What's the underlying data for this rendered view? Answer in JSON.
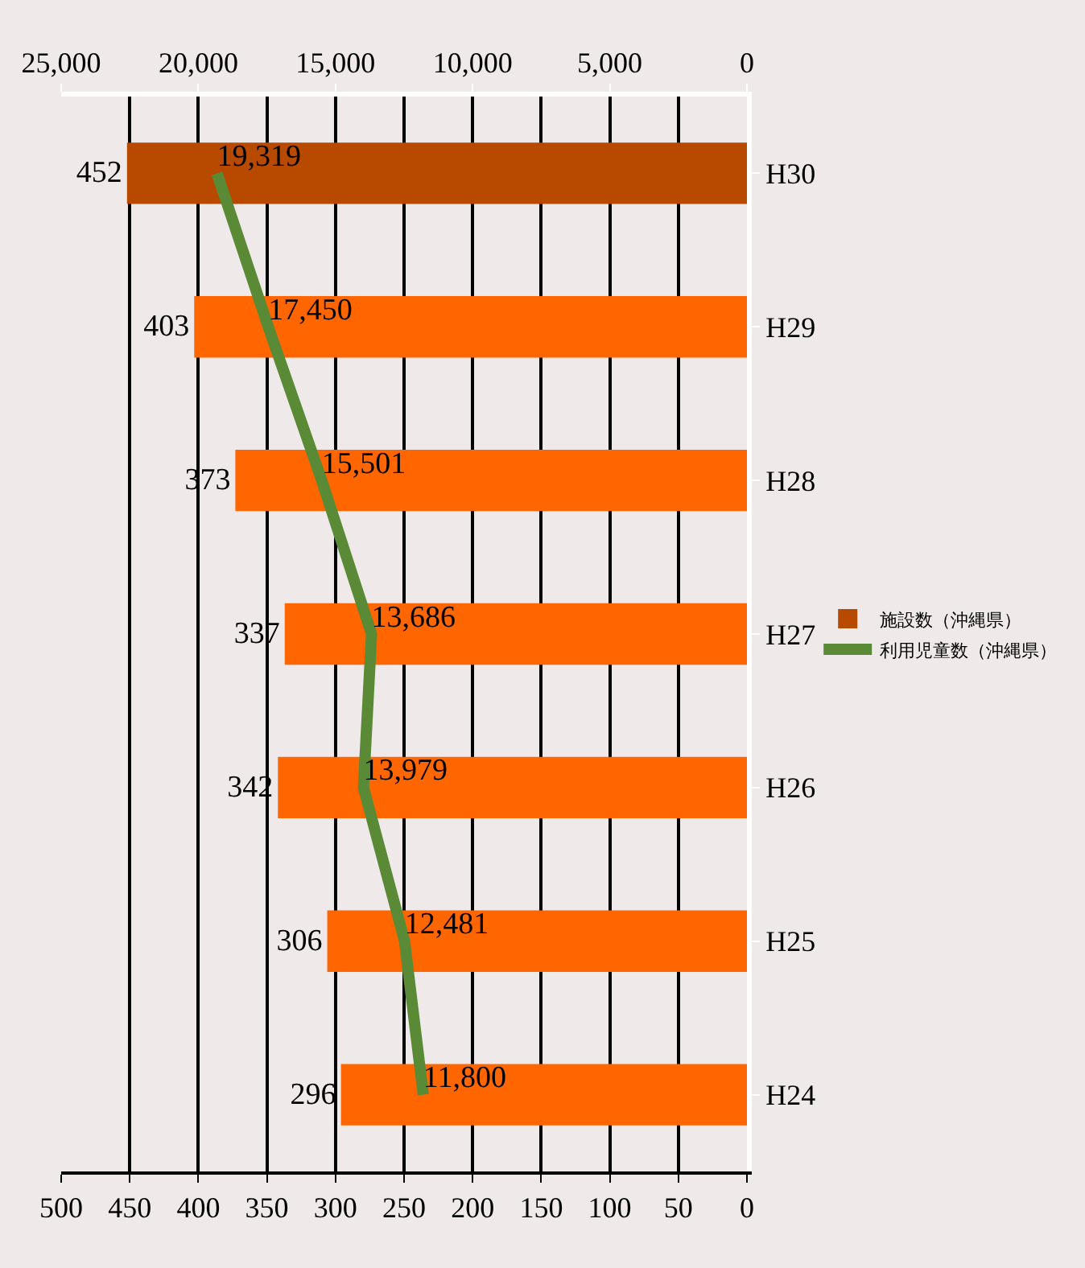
{
  "chart_data": {
    "type": "bar",
    "orientation": "horizontal",
    "categories": [
      "H30",
      "H29",
      "H28",
      "H27",
      "H26",
      "H25",
      "H24"
    ],
    "series": [
      {
        "name": "施設数（沖縄県）",
        "colors": [
          "#b84a00",
          "#ff6600",
          "#ff6600",
          "#ff6600",
          "#ff6600",
          "#ff6600",
          "#ff6600"
        ],
        "values": [
          452,
          403,
          373,
          337,
          342,
          306,
          296
        ],
        "data_labels": true
      },
      {
        "name": "利用児童数（沖縄県）",
        "type": "line",
        "axis": "x2",
        "color": "#5b8a37",
        "values": [
          19319,
          17450,
          15501,
          13686,
          13979,
          12481,
          11800
        ],
        "value_labels": [
          "19,319",
          "17,450",
          "15,501",
          "13,686",
          "13,979",
          "12,481",
          "11,800"
        ]
      }
    ],
    "xlim": [
      500,
      0
    ],
    "xticks": [
      500,
      450,
      400,
      350,
      300,
      250,
      200,
      150,
      100,
      50,
      0
    ],
    "x2lim": [
      25000,
      0
    ],
    "x2ticks": [
      {
        "value": 25000,
        "label": "25,000"
      },
      {
        "value": 20000,
        "label": "20,000"
      },
      {
        "value": 15000,
        "label": "15,000"
      },
      {
        "value": 10000,
        "label": "10,000"
      },
      {
        "value": 5000,
        "label": "5,000"
      },
      0
    ],
    "grid": "x",
    "legend": "right",
    "marker": "none",
    "line_style": "solid"
  }
}
